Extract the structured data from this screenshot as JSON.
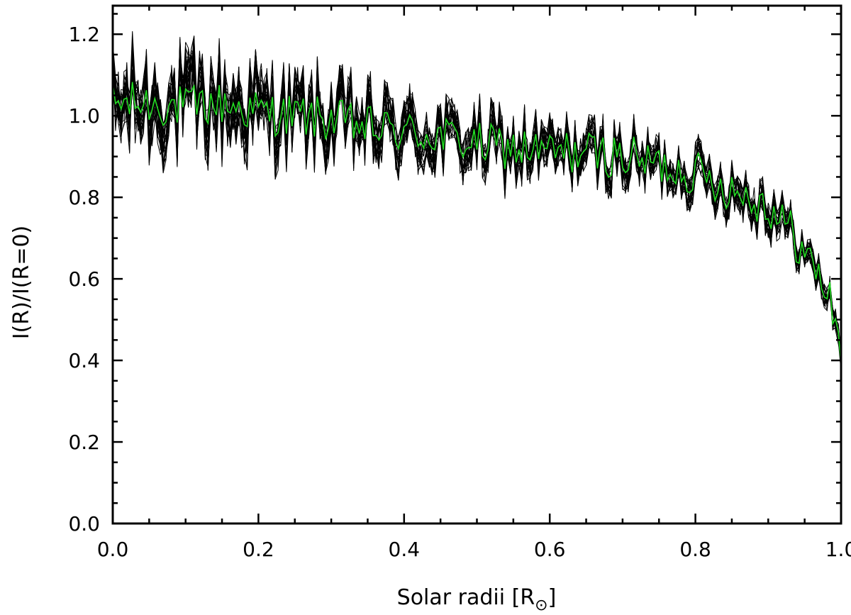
{
  "chart_data": {
    "type": "line",
    "title": "",
    "xlabel": "Solar radii [R",
    "xlabel_symbol": "⊙",
    "xlabel_close": "]",
    "ylabel": "I(R)/I(R=0)",
    "xlim": [
      0.0,
      1.0
    ],
    "ylim": [
      0.0,
      1.27
    ],
    "x_ticks": [
      "0.0",
      "0.2",
      "0.4",
      "0.6",
      "0.8",
      "1.0"
    ],
    "y_ticks": [
      "0.0",
      "0.2",
      "0.4",
      "0.6",
      "0.8",
      "1.0",
      "1.2"
    ],
    "x_tick_values": [
      0.0,
      0.2,
      0.4,
      0.6,
      0.8,
      1.0
    ],
    "y_tick_values": [
      0.0,
      0.2,
      0.4,
      0.6,
      0.8,
      1.0,
      1.2
    ],
    "grid": false,
    "legend": "none",
    "colors": {
      "individual": "#000000",
      "mean": "#22dd22"
    },
    "series": [
      {
        "role": "mean",
        "x": [
          0.0,
          0.05,
          0.1,
          0.15,
          0.2,
          0.25,
          0.3,
          0.35,
          0.4,
          0.45,
          0.5,
          0.55,
          0.6,
          0.65,
          0.7,
          0.75,
          0.8,
          0.85,
          0.9,
          0.93,
          0.95,
          0.97,
          0.98,
          0.99,
          1.0,
          1.005
        ],
        "y": [
          1.03,
          1.03,
          1.02,
          1.03,
          1.01,
          1.0,
          0.99,
          0.97,
          0.96,
          0.95,
          0.93,
          0.92,
          0.91,
          0.91,
          0.9,
          0.88,
          0.86,
          0.82,
          0.78,
          0.72,
          0.66,
          0.61,
          0.57,
          0.52,
          0.42,
          0.0
        ],
        "noise": 0.055
      },
      {
        "role": "individual",
        "count": 20,
        "x": [
          0.0,
          0.05,
          0.1,
          0.15,
          0.2,
          0.25,
          0.3,
          0.35,
          0.4,
          0.45,
          0.5,
          0.55,
          0.6,
          0.65,
          0.7,
          0.75,
          0.8,
          0.85,
          0.9,
          0.93,
          0.95,
          0.97,
          0.98,
          0.99,
          1.0
        ],
        "y": [
          1.03,
          1.03,
          1.02,
          1.03,
          1.01,
          1.0,
          0.99,
          0.97,
          0.96,
          0.95,
          0.93,
          0.92,
          0.91,
          0.91,
          0.9,
          0.88,
          0.86,
          0.82,
          0.78,
          0.72,
          0.66,
          0.61,
          0.57,
          0.52,
          0.42
        ],
        "spread": [
          0.14,
          0.14,
          0.14,
          0.14,
          0.13,
          0.12,
          0.12,
          0.11,
          0.11,
          0.1,
          0.1,
          0.1,
          0.09,
          0.09,
          0.09,
          0.08,
          0.08,
          0.08,
          0.08,
          0.07,
          0.06,
          0.06,
          0.06,
          0.05,
          0.05
        ]
      }
    ]
  }
}
